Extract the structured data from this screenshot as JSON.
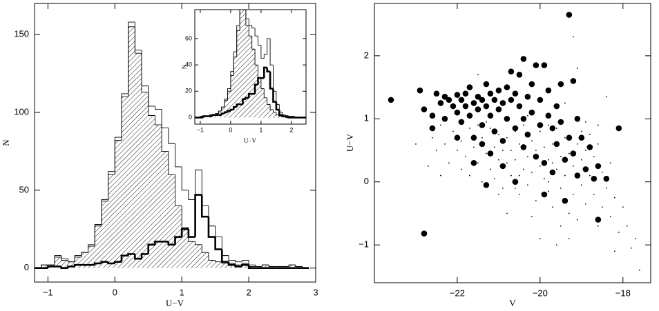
{
  "chart_data": [
    {
      "type": "histogram",
      "x_label": "U−V",
      "y_label": "N",
      "bins": [
        -1.2,
        -1.1,
        -1.0,
        -0.9,
        -0.8,
        -0.7,
        -0.6,
        -0.5,
        -0.4,
        -0.3,
        -0.2,
        -0.1,
        0.0,
        0.1,
        0.2,
        0.3,
        0.4,
        0.5,
        0.6,
        0.7,
        0.8,
        0.9,
        1.0,
        1.1,
        1.2,
        1.3,
        1.4,
        1.5,
        1.6,
        1.7,
        1.8,
        1.9,
        2.0,
        2.1,
        2.2,
        2.3,
        2.4,
        2.5,
        2.6,
        2.7,
        2.8,
        2.9
      ],
      "series": [
        {
          "style": "outline",
          "color": "#000000",
          "values": [
            0,
            2,
            2,
            8,
            6,
            4,
            8,
            10,
            15,
            28,
            44,
            62,
            84,
            112,
            158,
            140,
            117,
            104,
            102,
            90,
            80,
            65,
            50,
            44,
            63,
            40,
            27,
            20,
            8,
            5,
            4,
            5,
            2,
            1,
            2,
            1,
            1,
            1,
            2,
            1,
            0
          ]
        },
        {
          "style": "hatched",
          "color": "#000000",
          "values": [
            0,
            2,
            2,
            7,
            5,
            4,
            7,
            10,
            14,
            27,
            43,
            60,
            82,
            110,
            155,
            138,
            113,
            98,
            92,
            75,
            60,
            40,
            26,
            17,
            15,
            10,
            5,
            4,
            3,
            3,
            2,
            3,
            1,
            1,
            2,
            1,
            1,
            1,
            2,
            1,
            0
          ]
        },
        {
          "style": "thick",
          "color": "#000000",
          "values": [
            0,
            0,
            1,
            1,
            0,
            1,
            2,
            2,
            2,
            3,
            4,
            3,
            4,
            8,
            9,
            6,
            9,
            15,
            17,
            17,
            15,
            20,
            25,
            20,
            47,
            33,
            20,
            12,
            4,
            2,
            1,
            2,
            0,
            0,
            0,
            0,
            0,
            0,
            0,
            0,
            0
          ]
        }
      ],
      "xlim": [
        -1.2,
        3
      ],
      "ylim": [
        -9,
        170
      ],
      "xticks": [
        {
          "value": -1,
          "label": "−1"
        },
        0,
        1,
        2,
        3
      ],
      "yticks": [
        0,
        50,
        100,
        150
      ]
    },
    {
      "type": "histogram",
      "x_label": "U−V",
      "y_label": "N",
      "bins": [
        -1.2,
        -1.1,
        -1.0,
        -0.9,
        -0.8,
        -0.7,
        -0.6,
        -0.5,
        -0.4,
        -0.3,
        -0.2,
        -0.1,
        0.0,
        0.1,
        0.2,
        0.3,
        0.4,
        0.5,
        0.6,
        0.7,
        0.8,
        0.9,
        1.0,
        1.1,
        1.2,
        1.3,
        1.4,
        1.5,
        1.6,
        1.7,
        1.8,
        1.9,
        2.0,
        2.1,
        2.2,
        2.3,
        2.4,
        2.5
      ],
      "series": [
        {
          "style": "outline",
          "color": "#000000",
          "values": [
            0,
            0,
            1,
            1,
            1,
            2,
            2,
            3,
            5,
            8,
            14,
            22,
            35,
            50,
            70,
            90,
            85,
            75,
            70,
            68,
            62,
            55,
            45,
            48,
            60,
            40,
            20,
            10,
            4,
            2,
            1,
            1,
            1,
            0,
            0,
            0,
            0
          ]
        },
        {
          "style": "hatched",
          "color": "#000000",
          "values": [
            0,
            0,
            1,
            1,
            1,
            2,
            2,
            3,
            5,
            8,
            13,
            20,
            32,
            46,
            66,
            88,
            82,
            70,
            62,
            52,
            40,
            30,
            22,
            15,
            10,
            6,
            4,
            2,
            1,
            1,
            0,
            0,
            0,
            0,
            0,
            0,
            0
          ]
        },
        {
          "style": "thick",
          "color": "#000000",
          "values": [
            0,
            0,
            0,
            1,
            1,
            1,
            2,
            2,
            2,
            3,
            4,
            5,
            6,
            8,
            10,
            10,
            14,
            15,
            18,
            18,
            25,
            30,
            30,
            38,
            35,
            22,
            12,
            6,
            2,
            1,
            1,
            0,
            0,
            0,
            0,
            0,
            0
          ]
        }
      ],
      "xlim": [
        -1.18,
        2.48
      ],
      "ylim": [
        -5,
        82
      ],
      "xticks": [
        {
          "value": -1,
          "label": "−1"
        },
        0,
        1,
        2
      ],
      "yticks": [
        0,
        20,
        40,
        60
      ]
    },
    {
      "type": "scatter",
      "x_label": "V",
      "y_label": "U−V",
      "series": [
        {
          "marker": "large",
          "color": "#000000",
          "x": [
            -23.6,
            -22.8,
            -22.9,
            -22.8,
            -22.6,
            -22.5,
            -22.4,
            -22.3,
            -22.3,
            -22.2,
            -22.1,
            -22.0,
            -22.0,
            -21.9,
            -21.9,
            -21.8,
            -21.8,
            -21.7,
            -21.7,
            -21.6,
            -21.6,
            -21.5,
            -21.5,
            -21.4,
            -21.4,
            -21.3,
            -21.3,
            -21.2,
            -21.2,
            -21.1,
            -21.1,
            -21.0,
            -21.0,
            -20.9,
            -20.9,
            -20.8,
            -20.8,
            -20.7,
            -20.7,
            -20.6,
            -20.6,
            -20.5,
            -20.5,
            -20.4,
            -20.4,
            -20.3,
            -20.3,
            -20.2,
            -20.2,
            -20.1,
            -20.1,
            -20.0,
            -20.0,
            -19.9,
            -19.9,
            -19.8,
            -19.8,
            -19.7,
            -19.7,
            -19.6,
            -19.6,
            -19.5,
            -19.5,
            -19.4,
            -19.4,
            -19.3,
            -19.3,
            -19.2,
            -19.2,
            -19.1,
            -19.1,
            -19.0,
            -18.9,
            -18.8,
            -18.7,
            -18.6,
            -18.6,
            -18.4,
            -18.1,
            -21.6,
            -21.2,
            -22.6,
            -22.0,
            -21.4,
            -20.9,
            -20.6,
            -21.3,
            -20.4,
            -19.9
          ],
          "y": [
            1.3,
            -0.82,
            1.45,
            1.15,
            0.85,
            1.4,
            1.25,
            1.35,
            1.0,
            1.3,
            1.2,
            1.38,
            1.1,
            1.3,
            0.95,
            1.4,
            1.2,
            1.05,
            1.5,
            1.25,
            0.7,
            1.35,
            1.15,
            1.3,
            0.9,
            1.55,
            1.2,
            1.4,
            1.05,
            1.3,
            0.8,
            1.45,
            1.15,
            1.25,
            0.65,
            1.5,
            1.0,
            1.3,
            1.75,
            1.4,
            0.85,
            1.7,
            1.2,
            1.95,
            1.0,
            1.35,
            0.75,
            1.55,
            1.1,
            1.85,
            0.4,
            1.3,
            0.9,
            1.85,
            0.3,
            1.45,
            1.05,
            0.85,
            0.15,
            1.2,
            0.6,
            1.55,
            0.95,
            0.35,
            -0.3,
            2.65,
            0.7,
            1.6,
            0.45,
            1.0,
            0.1,
            0.7,
            0.2,
            0.55,
            0.05,
            0.25,
            -0.6,
            0.05,
            0.85,
            0.3,
            0.45,
            1.05,
            0.7,
            0.6,
            0.25,
            0.0,
            -0.05,
            0.55,
            -0.2
          ]
        },
        {
          "marker": "small",
          "color": "#000000",
          "x": [
            -22.7,
            -22.6,
            -22.5,
            -22.4,
            -22.3,
            -22.2,
            -22.1,
            -22.0,
            -21.9,
            -21.9,
            -21.8,
            -21.7,
            -21.7,
            -21.6,
            -21.5,
            -21.5,
            -21.4,
            -21.4,
            -21.3,
            -21.2,
            -21.2,
            -21.1,
            -21.1,
            -21.0,
            -21.0,
            -20.9,
            -20.9,
            -20.8,
            -20.8,
            -20.7,
            -20.7,
            -20.6,
            -20.6,
            -20.5,
            -20.5,
            -20.4,
            -20.4,
            -20.3,
            -20.3,
            -20.2,
            -20.2,
            -20.1,
            -20.1,
            -20.0,
            -20.0,
            -20.0,
            -19.9,
            -19.9,
            -19.8,
            -19.8,
            -19.8,
            -19.7,
            -19.7,
            -19.6,
            -19.6,
            -19.6,
            -19.5,
            -19.5,
            -19.4,
            -19.4,
            -19.3,
            -19.3,
            -19.2,
            -19.2,
            -19.2,
            -19.1,
            -19.1,
            -19.0,
            -19.0,
            -18.9,
            -18.9,
            -18.8,
            -18.8,
            -18.7,
            -18.7,
            -18.6,
            -18.6,
            -18.5,
            -18.5,
            -18.4,
            -18.4,
            -18.3,
            -18.3,
            -18.2,
            -18.1,
            -18.0,
            -17.9,
            -17.8,
            -17.7,
            -17.6,
            -18.2,
            -19.4,
            -19.1,
            -20.3,
            -21.5,
            -22.4,
            -23.0,
            -21.0,
            -20.5,
            -19.7,
            -18.9,
            -20.8,
            -19.5,
            -21.3,
            -19.8,
            -20.6,
            -19.0,
            -18.6,
            -20.2,
            -19.3,
            -22.8
          ],
          "y": [
            0.25,
            0.7,
            0.5,
            0.9,
            0.6,
            0.3,
            0.8,
            0.5,
            0.2,
            0.65,
            0.4,
            0.85,
            0.1,
            0.55,
            0.3,
            0.9,
            0.0,
            0.7,
            0.45,
            0.2,
            0.85,
            0.55,
            0.05,
            0.35,
            0.75,
            0.5,
            -0.1,
            0.3,
            0.7,
            0.1,
            0.5,
            0.8,
            0.35,
            -0.2,
            0.6,
            0.2,
            0.9,
            0.4,
            -0.05,
            0.65,
            0.15,
            -0.3,
            0.5,
            0.25,
            0.8,
            -0.9,
            0.05,
            0.55,
            0.35,
            -0.15,
            0.9,
            0.6,
            -0.4,
            0.2,
            0.85,
            -1.0,
            0.4,
            -0.1,
            0.7,
            0.1,
            -0.5,
            0.45,
            0.25,
            -0.2,
            2.3,
            0.6,
            -0.6,
            0.35,
            -0.05,
            0.5,
            -0.35,
            0.1,
            0.75,
            -0.2,
            0.4,
            -0.7,
            0.6,
            0.15,
            -0.4,
            -0.1,
            1.35,
            -0.55,
            0.3,
            -0.25,
            -0.8,
            -0.4,
            -0.7,
            -1.05,
            -0.9,
            -1.4,
            -1.1,
            1.25,
            1.8,
            1.05,
            1.7,
            0.1,
            0.6,
            -0.2,
            0.1,
            0.3,
            0.95,
            -0.5,
            -0.7,
            0.95,
            0.0,
            -0.1,
            0.8,
            0.9,
            -0.55,
            -0.9,
            -0.8
          ]
        }
      ],
      "xlim": [
        -24,
        -17.33
      ],
      "ylim": [
        -1.6,
        2.83
      ],
      "xticks": [
        {
          "value": -22,
          "label": "−22"
        },
        {
          "value": -20,
          "label": "−20"
        },
        {
          "value": -18,
          "label": "−18"
        }
      ],
      "yticks": [
        {
          "value": -1,
          "label": "−1"
        },
        0,
        1,
        2
      ]
    }
  ]
}
